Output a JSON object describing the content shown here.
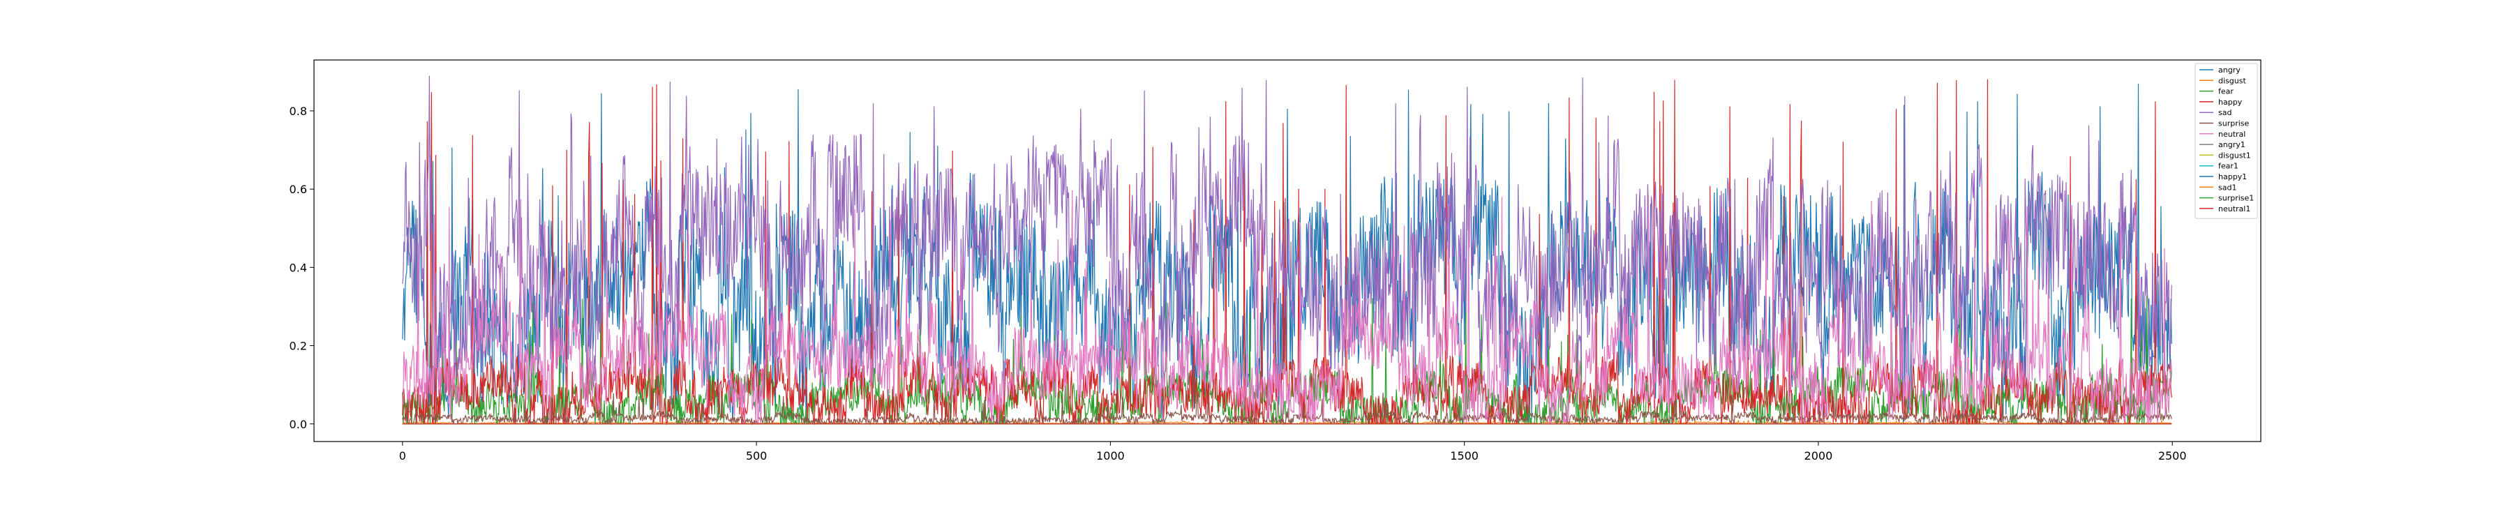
{
  "chart_data": {
    "type": "line",
    "title": "",
    "xlabel": "",
    "ylabel": "",
    "xlim": [
      -125,
      2625
    ],
    "ylim": [
      -0.045,
      0.93
    ],
    "n_points": 2500,
    "x_ticks": [
      0,
      500,
      1000,
      1500,
      2000,
      2500
    ],
    "y_ticks": [
      0.0,
      0.2,
      0.4,
      0.6,
      0.8
    ],
    "y_tick_labels": [
      "0.0",
      "0.2",
      "0.4",
      "0.6",
      "0.8"
    ],
    "x_tick_labels": [
      "0",
      "500",
      "1000",
      "1500",
      "2000",
      "2500"
    ],
    "grid": false,
    "legend_position": "top-right",
    "series": [
      {
        "name": "angry",
        "color": "#1f77b4",
        "base": 0.25,
        "amp": 0.35,
        "peak": 0.87,
        "seed": 11
      },
      {
        "name": "disgust",
        "color": "#ff7f0e",
        "base": 0.002,
        "amp": 0.003,
        "peak": 0.01,
        "seed": 12
      },
      {
        "name": "fear",
        "color": "#2ca02c",
        "base": 0.04,
        "amp": 0.1,
        "peak": 0.33,
        "seed": 13
      },
      {
        "name": "happy",
        "color": "#d62728",
        "base": 0.05,
        "amp": 0.12,
        "peak": 0.89,
        "seed": 14
      },
      {
        "name": "sad",
        "color": "#9467bd",
        "base": 0.35,
        "amp": 0.35,
        "peak": 0.89,
        "seed": 15
      },
      {
        "name": "surprise",
        "color": "#8c564b",
        "base": 0.01,
        "amp": 0.02,
        "peak": 0.08,
        "seed": 16
      },
      {
        "name": "neutral",
        "color": "#e377c2",
        "base": 0.12,
        "amp": 0.18,
        "peak": 0.6,
        "seed": 17
      },
      {
        "name": "angry1",
        "color": "#7f7f7f",
        "base": 0.0,
        "amp": 0.0,
        "peak": 0.0,
        "seed": 18
      },
      {
        "name": "disgust1",
        "color": "#bcbd22",
        "base": 0.0,
        "amp": 0.0,
        "peak": 0.0,
        "seed": 19
      },
      {
        "name": "fear1",
        "color": "#17becf",
        "base": 0.0,
        "amp": 0.0,
        "peak": 0.0,
        "seed": 20
      },
      {
        "name": "happy1",
        "color": "#1f77b4",
        "base": 0.0,
        "amp": 0.0,
        "peak": 0.0,
        "seed": 21
      },
      {
        "name": "sad1",
        "color": "#ff7f0e",
        "base": 0.0,
        "amp": 0.0,
        "peak": 0.0,
        "seed": 22
      },
      {
        "name": "surprise1",
        "color": "#2ca02c",
        "base": 0.0,
        "amp": 0.0,
        "peak": 0.0,
        "seed": 23
      },
      {
        "name": "neutral1",
        "color": "#d62728",
        "base": 0.0,
        "amp": 0.0,
        "peak": 0.0,
        "seed": 24
      }
    ]
  }
}
